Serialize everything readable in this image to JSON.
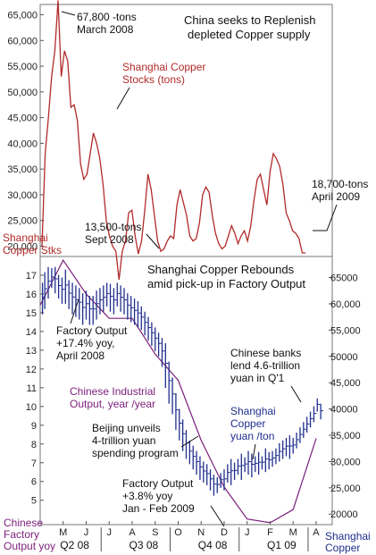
{
  "chart_data": [
    {
      "type": "line",
      "title": "China seeks to Replenish depleted Copper supply",
      "title_lines": [
        "China seeks to Replenish",
        "depleted Copper supply"
      ],
      "ylim": [
        18000,
        67000
      ],
      "yticks": [
        "65,000",
        "60,000",
        "55,000",
        "50,000",
        "45,000",
        "40,000",
        "35,000",
        "30,000",
        "25,000",
        "20,000"
      ],
      "ytick_values": [
        65000,
        60000,
        55000,
        50000,
        45000,
        40000,
        35000,
        30000,
        25000,
        20000
      ],
      "series": [
        {
          "name": "Shanghai Copper Stocks (tons)",
          "name_lines": [
            "Shanghai Copper",
            "Stocks (tons)"
          ],
          "color": "#b22a2a",
          "x": [
            0,
            2,
            4,
            6,
            8,
            10,
            12,
            14,
            16,
            18,
            20,
            22,
            24,
            26,
            28,
            30,
            32,
            34,
            36,
            38,
            40,
            42,
            44,
            46,
            48,
            50,
            52,
            54,
            56,
            58,
            60,
            62,
            64,
            66,
            68,
            70,
            72,
            74,
            76,
            78,
            80,
            82,
            84,
            86,
            88,
            90,
            92,
            94,
            96,
            98,
            100,
            102,
            104,
            106,
            108,
            110,
            112,
            114,
            116,
            118,
            120,
            122,
            124,
            126,
            128,
            130,
            132,
            134,
            136,
            138,
            140,
            142,
            144,
            146,
            148,
            150,
            152,
            154,
            156,
            158,
            160,
            162,
            164
          ],
          "values": [
            20000,
            38000,
            45000,
            53000,
            58000,
            67800,
            53000,
            58000,
            56000,
            47000,
            47500,
            44500,
            36000,
            33000,
            34000,
            38000,
            42000,
            40000,
            37000,
            32000,
            25000,
            22000,
            20000,
            19000,
            13500,
            19000,
            21000,
            26500,
            27000,
            22000,
            18500,
            21000,
            27000,
            34000,
            31000,
            26000,
            21000,
            19000,
            19500,
            21000,
            22000,
            21500,
            28000,
            31000,
            28500,
            26000,
            22000,
            21000,
            21500,
            24500,
            30000,
            31500,
            30500,
            26000,
            22500,
            20500,
            19500,
            20000,
            22000,
            24000,
            22500,
            20500,
            22000,
            23000,
            21000,
            24000,
            29000,
            33000,
            34000,
            31000,
            28000,
            34500,
            38000,
            37000,
            35500,
            32000,
            26500,
            25000,
            23000,
            22500,
            21500,
            18700,
            18700
          ]
        }
      ],
      "annotations": [
        {
          "lines": [
            "67,800 -tons",
            "March 2008"
          ]
        },
        {
          "lines": [
            "13,500-tons",
            "Sept 2008"
          ]
        },
        {
          "lines": [
            "18,700-tons",
            "April 2009"
          ]
        }
      ],
      "corner_label_lines": [
        "Shanghai",
        "Copper Stks"
      ],
      "grid": false
    },
    {
      "type": "line",
      "title": "Shanghai Copper Rebounds amid pick-up in Factory Output",
      "title_lines": [
        "Shanghai Copper Rebounds",
        "amid pick-up in Factory Output"
      ],
      "categories": [
        "M",
        "J",
        "J",
        "A",
        "S",
        "O",
        "N",
        "D",
        "J",
        "F",
        "M",
        "A"
      ],
      "category_x": [
        5,
        6,
        7,
        8,
        9,
        10,
        11,
        12,
        13,
        14,
        15,
        16
      ],
      "quarters": [
        "Q2 08",
        "Q3 08",
        "Q4 08",
        "Q1 09"
      ],
      "quarter_x": [
        5.5,
        8.5,
        11.5,
        14.5
      ],
      "xlim": [
        4,
        16.7
      ],
      "y_left": {
        "label_lines": [
          "Chinese",
          "Factory",
          "Output yoy"
        ],
        "ylim": [
          3.7,
          18
        ],
        "ticks": [
          "17",
          "16",
          "15",
          "14",
          "13",
          "12",
          "11",
          "10",
          "9",
          "8",
          "7",
          "6",
          "5"
        ],
        "tick_values": [
          17,
          16,
          15,
          14,
          13,
          12,
          11,
          10,
          9,
          8,
          7,
          6,
          5
        ]
      },
      "y_right": {
        "label_lines": [
          "Shanghai",
          "Copper"
        ],
        "ylim": [
          18000,
          69000
        ],
        "ticks": [
          "65000",
          "60,000",
          "55,000",
          "50000",
          "45,000",
          "40000",
          "35,000",
          "30,000",
          "25,000",
          "20000"
        ],
        "tick_values": [
          65000,
          60000,
          55000,
          50000,
          45000,
          40000,
          35000,
          30000,
          25000,
          20000
        ]
      },
      "series": [
        {
          "name": "Chinese Industrial Output, year /year",
          "name_lines": [
            "Chinese Industrial",
            "Output, year /year"
          ],
          "axis": "left",
          "color": "#7b1f7b",
          "x": [
            4,
            5,
            6,
            7,
            8,
            9,
            10,
            11,
            12,
            13,
            14,
            15,
            16
          ],
          "values": [
            15.4,
            17.8,
            16.0,
            14.7,
            14.7,
            12.8,
            11.4,
            8.2,
            5.7,
            4.0,
            3.8,
            4.5,
            8.3
          ]
        },
        {
          "name": "Shanghai Copper yuan /ton",
          "name_lines": [
            "Shanghai",
            "Copper",
            "yuan /ton"
          ],
          "axis": "right",
          "color": "#1f2f8c",
          "style": "ohlc",
          "x": [
            4.1,
            4.2,
            4.35,
            4.5,
            4.65,
            4.8,
            4.95,
            5.1,
            5.25,
            5.4,
            5.55,
            5.7,
            5.85,
            6.0,
            6.15,
            6.3,
            6.45,
            6.6,
            6.75,
            6.9,
            7.05,
            7.2,
            7.35,
            7.5,
            7.65,
            7.8,
            7.95,
            8.1,
            8.25,
            8.4,
            8.55,
            8.7,
            8.85,
            9.0,
            9.15,
            9.3,
            9.45,
            9.6,
            9.75,
            9.9,
            10.05,
            10.2,
            10.35,
            10.5,
            10.65,
            10.8,
            10.95,
            11.1,
            11.25,
            11.4,
            11.55,
            11.7,
            11.85,
            12.0,
            12.15,
            12.3,
            12.45,
            12.6,
            12.75,
            12.9,
            13.05,
            13.2,
            13.35,
            13.5,
            13.65,
            13.8,
            13.95,
            14.1,
            14.25,
            14.4,
            14.55,
            14.7,
            14.85,
            15.0,
            15.15,
            15.3,
            15.45,
            15.6,
            15.75,
            15.9,
            16.05,
            16.2
          ],
          "high": [
            64000,
            66000,
            67000,
            66800,
            67000,
            65500,
            65000,
            66500,
            64500,
            64000,
            63500,
            63000,
            62000,
            62500,
            61500,
            61500,
            62500,
            63000,
            63500,
            64000,
            63800,
            63000,
            64000,
            63500,
            63000,
            62000,
            61500,
            61000,
            60500,
            59500,
            58500,
            57500,
            56500,
            55500,
            54500,
            53500,
            52500,
            49000,
            46000,
            43000,
            40000,
            38000,
            36000,
            34000,
            33000,
            32000,
            31000,
            30000,
            29500,
            28500,
            27500,
            27000,
            27800,
            28500,
            29500,
            30500,
            29800,
            30500,
            31500,
            30800,
            32000,
            31500,
            31000,
            31800,
            31000,
            32500,
            31800,
            32000,
            32500,
            33500,
            34000,
            34500,
            35000,
            34500,
            35500,
            36500,
            37500,
            38500,
            39500,
            40500,
            42000,
            41000
          ],
          "low": [
            58000,
            59000,
            61000,
            63000,
            62000,
            61000,
            60000,
            60000,
            59000,
            58000,
            57500,
            57000,
            56000,
            57000,
            56000,
            56000,
            57000,
            58000,
            58500,
            59500,
            58500,
            58000,
            59500,
            58500,
            58000,
            57000,
            56500,
            56000,
            55500,
            55000,
            54000,
            53000,
            52000,
            51000,
            50000,
            48000,
            44000,
            41000,
            39000,
            36000,
            34000,
            32000,
            30500,
            29500,
            28500,
            27500,
            26500,
            26000,
            25500,
            24500,
            23500,
            24000,
            25000,
            24500,
            26000,
            25500,
            26500,
            27500,
            26500,
            28000,
            27500,
            27000,
            28000,
            27500,
            28500,
            28000,
            28500,
            29000,
            29500,
            30000,
            30500,
            31000,
            30500,
            31500,
            32500,
            33500,
            34500,
            35500,
            36500,
            37500,
            39500,
            38000
          ]
        }
      ],
      "annotations": [
        {
          "lines": [
            "Factory Output",
            "+17.4% yoy,",
            "April 2008"
          ]
        },
        {
          "lines": [
            "Beijing unveils",
            "4-trillion yuan",
            "spending program"
          ]
        },
        {
          "lines": [
            "Factory Output",
            "+3.8% yoy",
            "Jan - Feb 2009"
          ]
        },
        {
          "lines": [
            "Chinese banks",
            "lend 4.6-trillion",
            "yuan in Q'1"
          ]
        }
      ],
      "grid": false
    }
  ]
}
